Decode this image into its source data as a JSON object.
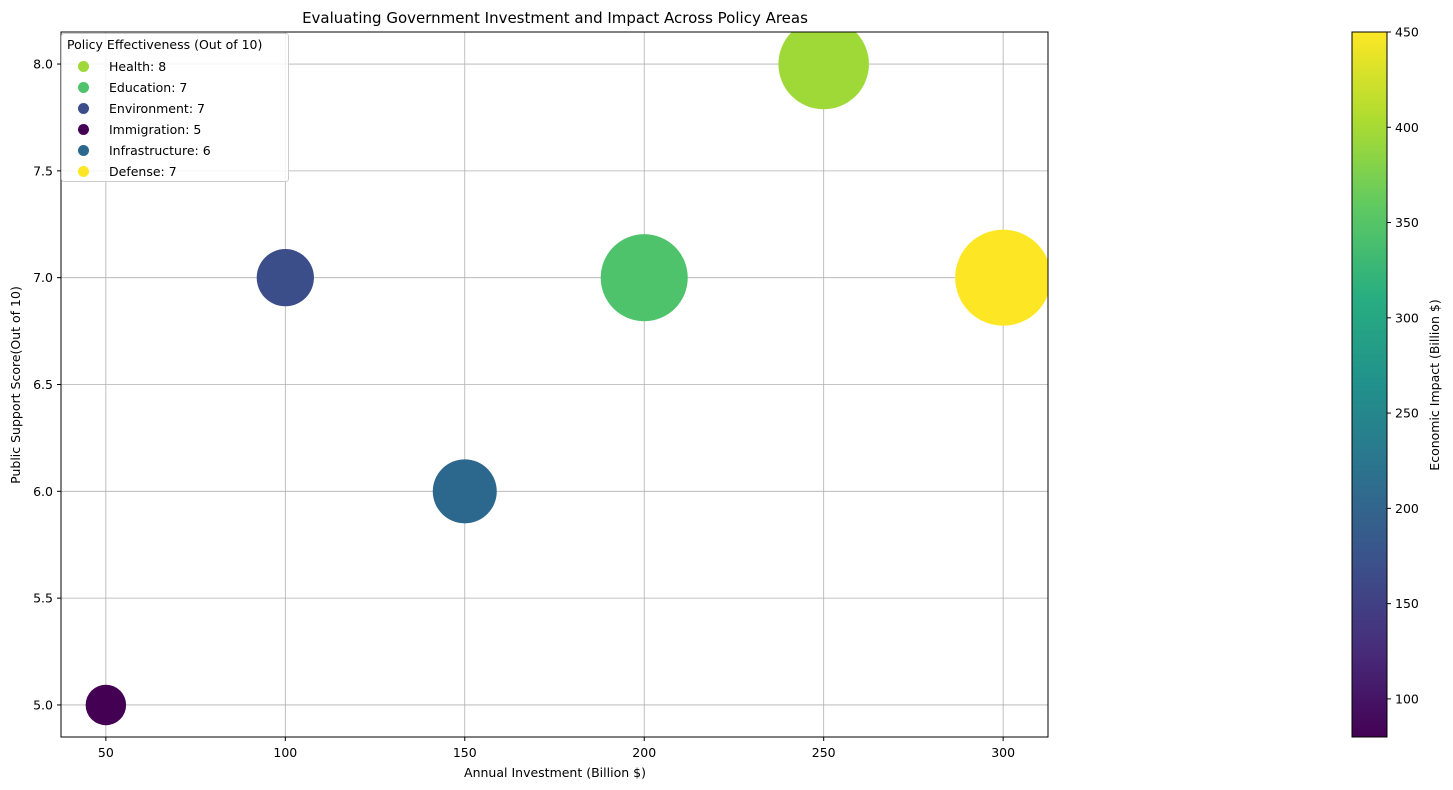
{
  "chart_data": {
    "type": "scatter",
    "title": "Evaluating Government Investment and Impact Across Policy Areas",
    "xlabel": "Annual Investment (Billion $)",
    "ylabel": "Public Support Score(Out of 10)",
    "xlim": [
      37.5,
      312.5
    ],
    "ylim": [
      4.85,
      8.15
    ],
    "xticks": [
      50,
      100,
      150,
      200,
      250,
      300
    ],
    "yticks": [
      5.0,
      5.5,
      6.0,
      6.5,
      7.0,
      7.5,
      8.0
    ],
    "ytick_labels": [
      "5.0",
      "5.5",
      "6.0",
      "6.5",
      "7.0",
      "7.5",
      "8.0"
    ],
    "grid": true,
    "legend": {
      "title": "Policy Effectiveness (Out of 10)",
      "placement": "upper-left",
      "entries": [
        "Health: 8",
        "Education: 7",
        "Environment: 7",
        "Immigration: 5",
        "Infrastructure: 6",
        "Defense: 7"
      ]
    },
    "size_encoding": "Economic Impact (Billion $)",
    "colorbar": {
      "label": "Economic Impact (Billion $)",
      "colormap": "viridis",
      "range": [
        80,
        450
      ],
      "ticks": [
        100,
        150,
        200,
        250,
        300,
        350,
        400,
        450
      ]
    },
    "points": [
      {
        "category": "Health",
        "effectiveness": 8,
        "investment": 250,
        "support": 8,
        "impact": 400,
        "color": "#9fd938"
      },
      {
        "category": "Education",
        "effectiveness": 7,
        "investment": 200,
        "support": 7,
        "impact": 370,
        "color": "#4ec36b"
      },
      {
        "category": "Environment",
        "effectiveness": 7,
        "investment": 100,
        "support": 7,
        "impact": 160,
        "color": "#3b4e8a"
      },
      {
        "category": "Immigration",
        "effectiveness": 5,
        "investment": 50,
        "support": 5,
        "impact": 80,
        "color": "#440154"
      },
      {
        "category": "Infrastructure",
        "effectiveness": 6,
        "investment": 150,
        "support": 6,
        "impact": 200,
        "color": "#2c678e"
      },
      {
        "category": "Defense",
        "effectiveness": 7,
        "investment": 300,
        "support": 7,
        "impact": 450,
        "color": "#fde725"
      }
    ]
  }
}
